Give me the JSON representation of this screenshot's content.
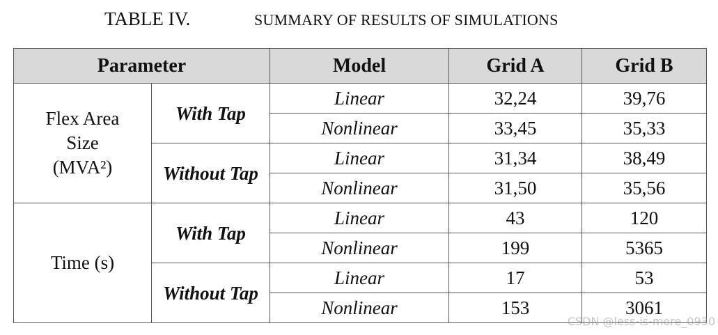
{
  "title": {
    "label": "TABLE IV.",
    "caption": "SUMMARY OF RESULTS OF SIMULATIONS"
  },
  "table": {
    "header": [
      "Parameter",
      "Model",
      "Grid A",
      "Grid B"
    ],
    "groups": [
      {
        "parameter": "Flex Area Size (MVA²)",
        "subgroups": [
          {
            "tap": "With Tap",
            "rows": [
              [
                "Linear",
                "32,24",
                "39,76"
              ],
              [
                "Nonlinear",
                "33,45",
                "35,33"
              ]
            ]
          },
          {
            "tap": "Without Tap",
            "rows": [
              [
                "Linear",
                "31,34",
                "38,49"
              ],
              [
                "Nonlinear",
                "31,50",
                "35,56"
              ]
            ]
          }
        ]
      },
      {
        "parameter": "Time (s)",
        "subgroups": [
          {
            "tap": "With Tap",
            "rows": [
              [
                "Linear",
                "43",
                "120"
              ],
              [
                "Nonlinear",
                "199",
                "5365"
              ]
            ]
          },
          {
            "tap": "Without Tap",
            "rows": [
              [
                "Linear",
                "17",
                "53"
              ],
              [
                "Nonlinear",
                "153",
                "3061"
              ]
            ]
          }
        ]
      }
    ]
  },
  "watermark": "CSDN @less-is-more_0930"
}
